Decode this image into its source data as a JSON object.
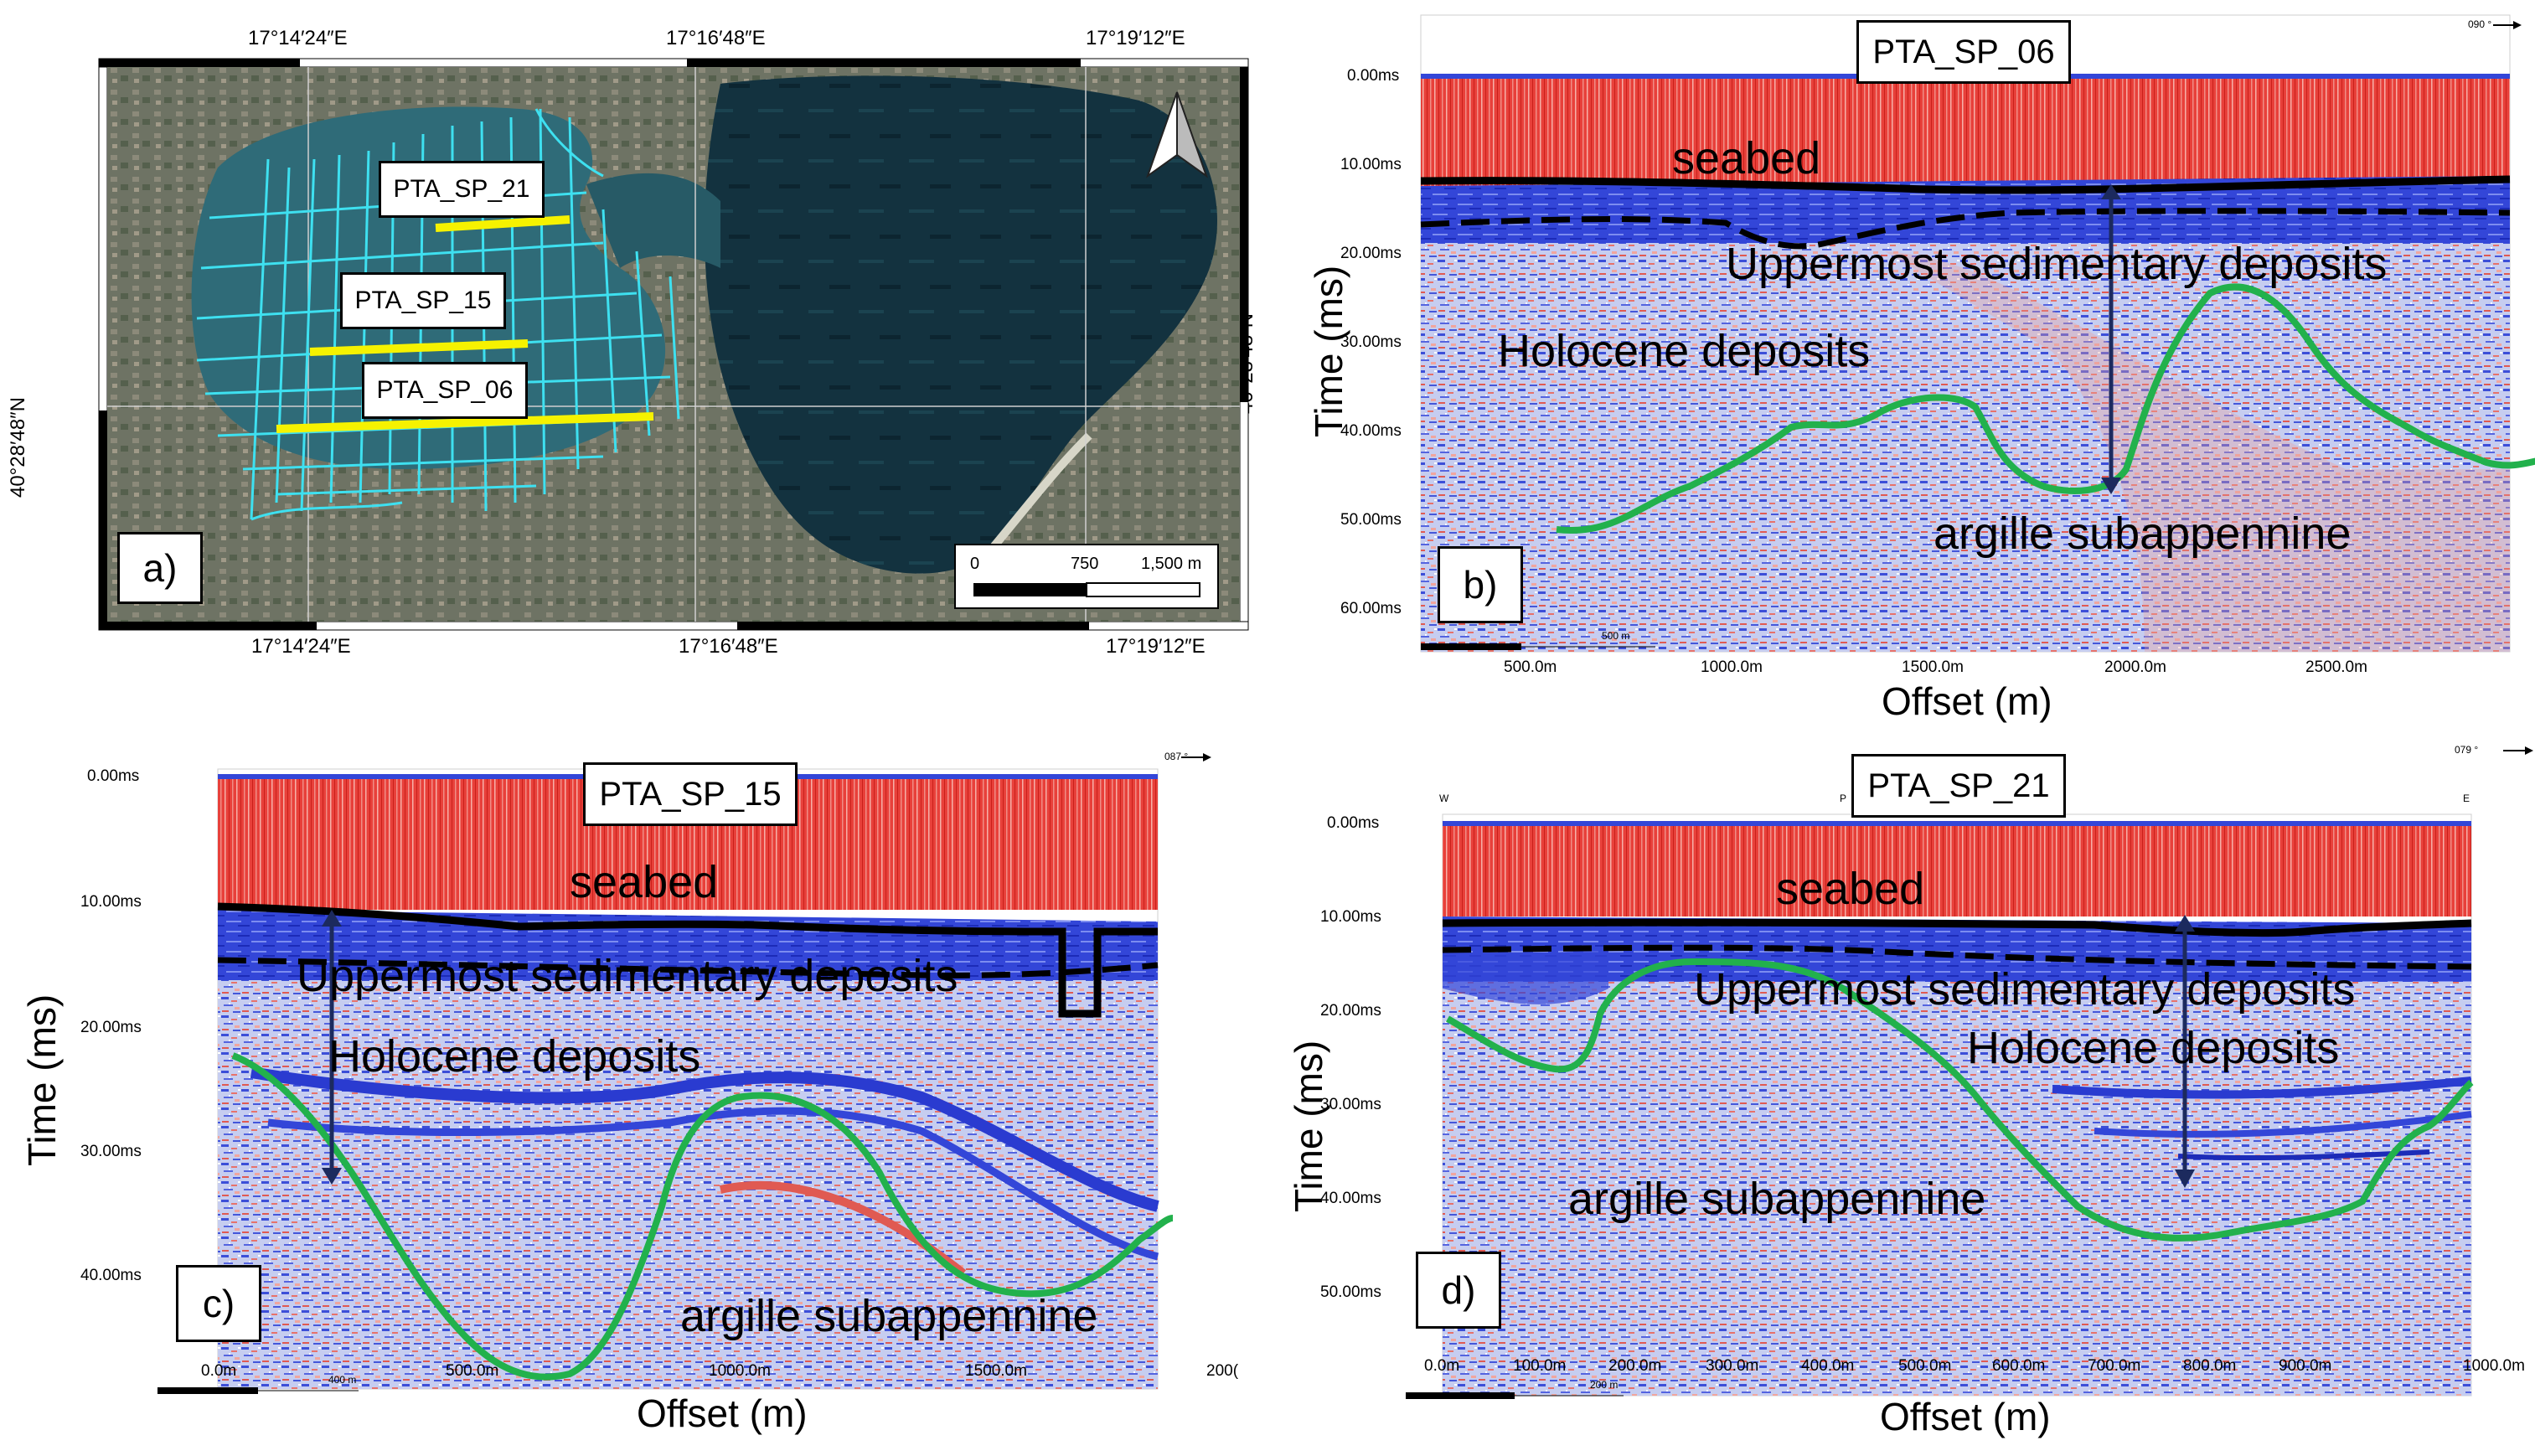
{
  "panels": {
    "a": {
      "letter": "a)",
      "top_coords": [
        "17°14′24″E",
        "17°16′48″E",
        "17°19′12″E"
      ],
      "bottom_coords": [
        "17°14′24″E",
        "17°16′48″E",
        "17°19′12″E"
      ],
      "left_coord": "40°28′48″N",
      "right_coord": "40°28′48″N",
      "line_labels": [
        "PTA_SP_21",
        "PTA_SP_15",
        "PTA_SP_06"
      ],
      "scale_labels": [
        "0",
        "750",
        "1,500 m"
      ]
    },
    "b": {
      "letter": "b)",
      "title": "PTA_SP_06",
      "heading": "090 °",
      "y_ticks": [
        "0.00ms",
        "10.00ms",
        "20.00ms",
        "30.00ms",
        "40.00ms",
        "50.00ms",
        "60.00ms"
      ],
      "x_ticks": [
        "500.0m",
        "1000.0m",
        "1500.0m",
        "2000.0m",
        "2500.0m"
      ],
      "scale_bar": "500 m",
      "ylabel": "Time (ms)",
      "xlabel": "Offset (m)",
      "annotations": [
        "seabed",
        "Uppermost sedimentary deposits",
        "Holocene deposits",
        "argille subappennine"
      ]
    },
    "c": {
      "letter": "c)",
      "title": "PTA_SP_15",
      "heading": "087 °",
      "y_ticks": [
        "0.00ms",
        "10.00ms",
        "20.00ms",
        "30.00ms",
        "40.00ms"
      ],
      "x_ticks": [
        "0.0m",
        "500.0m",
        "1000.0m",
        "1500.0m",
        "200("
      ],
      "scale_bar": "400 m",
      "ylabel": "Time (ms)",
      "xlabel": "Offset (m)",
      "annotations": [
        "seabed",
        "Uppermost sedimentary deposits",
        "Holocene deposits",
        "argille subappennine"
      ]
    },
    "d": {
      "letter": "d)",
      "title": "PTA_SP_21",
      "heading": "079 °",
      "dir_labels": [
        "W",
        "P",
        "E"
      ],
      "y_ticks": [
        "0.00ms",
        "10.00ms",
        "20.00ms",
        "30.00ms",
        "40.00ms",
        "50.00ms"
      ],
      "x_ticks": [
        "0.0m",
        "100.0m",
        "200.0m",
        "300.0m",
        "400.0m",
        "500.0m",
        "600.0m",
        "700.0m",
        "800.0m",
        "900.0m",
        "1000.0m"
      ],
      "scale_bar": "200 m",
      "ylabel": "Time (ms)",
      "xlabel": "Offset (m)",
      "annotations": [
        "seabed",
        "Uppermost sedimentary deposits",
        "Holocene deposits",
        "argille subappennine"
      ]
    }
  },
  "colors": {
    "seismic_red": "#e0413d",
    "seismic_blue": "#2a3fd6",
    "horizon_green": "#22b14c",
    "survey_cyan": "#3ee0f0",
    "profile_yellow": "#f6f200",
    "sea_dark": "#0f2833",
    "land": "#6f7566"
  }
}
